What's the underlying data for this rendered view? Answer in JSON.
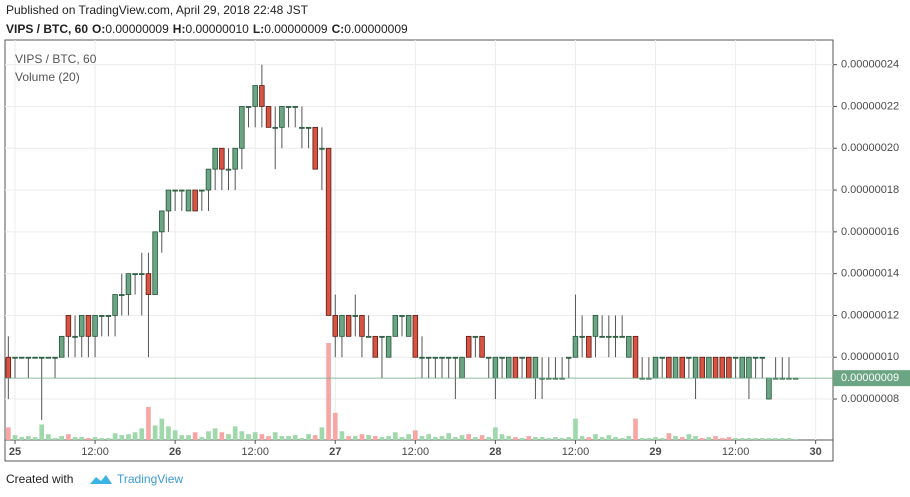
{
  "header": {
    "published": "Published on TradingView.com, April 29, 2018 22:48 JST",
    "symbol": "VIPS / BTC, 60",
    "ohlc": [
      {
        "label": "O:",
        "value": "0.00000009"
      },
      {
        "label": "H:",
        "value": "0.00000010"
      },
      {
        "label": "L:",
        "value": "0.00000009"
      },
      {
        "label": "C:",
        "value": "0.00000009"
      }
    ]
  },
  "chart_data": {
    "type": "candlestick",
    "legend": [
      "VIPS / BTC, 60",
      "Volume (20)"
    ],
    "up_color": "#6ba583",
    "down_color": "#d75442",
    "up_border": "#225437",
    "down_border": "#5b1a13",
    "volume_up_color": "#9fd8ab",
    "volume_down_color": "#f7a6a6",
    "grid": true,
    "ylim": [
      6.04e-08,
      2.518e-07
    ],
    "yticks": [
      {
        "value": 8e-08,
        "label": "0.00000008"
      },
      {
        "value": 1e-07,
        "label": "0.00000010"
      },
      {
        "value": 1.2e-07,
        "label": "0.00000012"
      },
      {
        "value": 1.4e-07,
        "label": "0.00000014"
      },
      {
        "value": 1.6e-07,
        "label": "0.00000016"
      },
      {
        "value": 1.8e-07,
        "label": "0.00000018"
      },
      {
        "value": 2e-07,
        "label": "0.00000020"
      },
      {
        "value": 2.2e-07,
        "label": "0.00000022"
      },
      {
        "value": 2.4e-07,
        "label": "0.00000024"
      }
    ],
    "xlim": [
      -0.5,
      123.6
    ],
    "xticks": [
      {
        "value": 1,
        "label": "25"
      },
      {
        "value": 13,
        "label": "12:00"
      },
      {
        "value": 25,
        "label": "26"
      },
      {
        "value": 37,
        "label": "12:00"
      },
      {
        "value": 49,
        "label": "27"
      },
      {
        "value": 61,
        "label": "12:00"
      },
      {
        "value": 73,
        "label": "28"
      },
      {
        "value": 85,
        "label": "12:00"
      },
      {
        "value": 97,
        "label": "29"
      },
      {
        "value": 109,
        "label": "12:00"
      },
      {
        "value": 121,
        "label": "30"
      }
    ],
    "last_price": {
      "value": 9e-08,
      "label": "0.00000009"
    },
    "candles": [
      {
        "open": 1e-07,
        "high": 1.1e-07,
        "low": 8e-08,
        "close": 9e-08,
        "volume": 13
      },
      {
        "open": 1e-07,
        "high": 1e-07,
        "low": 9e-08,
        "close": 1e-07,
        "volume": 5
      },
      {
        "open": 1e-07,
        "high": 1e-07,
        "low": 1e-07,
        "close": 1e-07,
        "volume": 3
      },
      {
        "open": 1e-07,
        "high": 1e-07,
        "low": 9e-08,
        "close": 1e-07,
        "volume": 4
      },
      {
        "open": 1e-07,
        "high": 1e-07,
        "low": 1e-07,
        "close": 1e-07,
        "volume": 3
      },
      {
        "open": 1e-07,
        "high": 1e-07,
        "low": 7e-08,
        "close": 1e-07,
        "volume": 16
      },
      {
        "open": 1e-07,
        "high": 1e-07,
        "low": 1e-07,
        "close": 1e-07,
        "volume": 6
      },
      {
        "open": 1e-07,
        "high": 1e-07,
        "low": 9e-08,
        "close": 1e-07,
        "volume": 2
      },
      {
        "open": 1e-07,
        "high": 1.1e-07,
        "low": 1e-07,
        "close": 1.1e-07,
        "volume": 4
      },
      {
        "open": 1.2e-07,
        "high": 1.2e-07,
        "low": 1e-07,
        "close": 1.1e-07,
        "volume": 6
      },
      {
        "open": 1.1e-07,
        "high": 1.2e-07,
        "low": 1e-07,
        "close": 1.1e-07,
        "volume": 3
      },
      {
        "open": 1.1e-07,
        "high": 1.2e-07,
        "low": 1e-07,
        "close": 1.2e-07,
        "volume": 3
      },
      {
        "open": 1.2e-07,
        "high": 1.2e-07,
        "low": 1e-07,
        "close": 1.1e-07,
        "volume": 2
      },
      {
        "open": 1.1e-07,
        "high": 1.2e-07,
        "low": 1e-07,
        "close": 1.2e-07,
        "volume": 3
      },
      {
        "open": 1.2e-07,
        "high": 1.2e-07,
        "low": 1.1e-07,
        "close": 1.2e-07,
        "volume": 2
      },
      {
        "open": 1.2e-07,
        "high": 1.2e-07,
        "low": 1.1e-07,
        "close": 1.2e-07,
        "volume": 2
      },
      {
        "open": 1.2e-07,
        "high": 1.3e-07,
        "low": 1.1e-07,
        "close": 1.3e-07,
        "volume": 7
      },
      {
        "open": 1.3e-07,
        "high": 1.4e-07,
        "low": 1.2e-07,
        "close": 1.3e-07,
        "volume": 5
      },
      {
        "open": 1.3e-07,
        "high": 1.4e-07,
        "low": 1.2e-07,
        "close": 1.4e-07,
        "volume": 6
      },
      {
        "open": 1.4e-07,
        "high": 1.4e-07,
        "low": 1.3e-07,
        "close": 1.4e-07,
        "volume": 8
      },
      {
        "open": 1.4e-07,
        "high": 1.5e-07,
        "low": 1.2e-07,
        "close": 1.4e-07,
        "volume": 12
      },
      {
        "open": 1.4e-07,
        "high": 1.5e-07,
        "low": 1e-07,
        "close": 1.3e-07,
        "volume": 34
      },
      {
        "open": 1.3e-07,
        "high": 1.6e-07,
        "low": 1.3e-07,
        "close": 1.6e-07,
        "volume": 15
      },
      {
        "open": 1.6e-07,
        "high": 1.7e-07,
        "low": 1.5e-07,
        "close": 1.7e-07,
        "volume": 22
      },
      {
        "open": 1.7e-07,
        "high": 1.8e-07,
        "low": 1.6e-07,
        "close": 1.8e-07,
        "volume": 14
      },
      {
        "open": 1.8e-07,
        "high": 1.8e-07,
        "low": 1.7e-07,
        "close": 1.8e-07,
        "volume": 10
      },
      {
        "open": 1.8e-07,
        "high": 1.8e-07,
        "low": 1.7e-07,
        "close": 1.8e-07,
        "volume": 5
      },
      {
        "open": 1.7e-07,
        "high": 1.8e-07,
        "low": 1.7e-07,
        "close": 1.8e-07,
        "volume": 5
      },
      {
        "open": 1.8e-07,
        "high": 1.8e-07,
        "low": 1.7e-07,
        "close": 1.7e-07,
        "volume": 8
      },
      {
        "open": 1.8e-07,
        "high": 1.8e-07,
        "low": 1.7e-07,
        "close": 1.8e-07,
        "volume": 3
      },
      {
        "open": 1.8e-07,
        "high": 1.9e-07,
        "low": 1.7e-07,
        "close": 1.9e-07,
        "volume": 9
      },
      {
        "open": 1.9e-07,
        "high": 2e-07,
        "low": 1.8e-07,
        "close": 2e-07,
        "volume": 12
      },
      {
        "open": 2e-07,
        "high": 2e-07,
        "low": 1.8e-07,
        "close": 1.9e-07,
        "volume": 8
      },
      {
        "open": 1.9e-07,
        "high": 2e-07,
        "low": 1.8e-07,
        "close": 1.9e-07,
        "volume": 6
      },
      {
        "open": 1.9e-07,
        "high": 2e-07,
        "low": 1.8e-07,
        "close": 2e-07,
        "volume": 14
      },
      {
        "open": 2e-07,
        "high": 2.2e-07,
        "low": 1.9e-07,
        "close": 2.2e-07,
        "volume": 9
      },
      {
        "open": 2.2e-07,
        "high": 2.2e-07,
        "low": 2.1e-07,
        "close": 2.2e-07,
        "volume": 6
      },
      {
        "open": 2.2e-07,
        "high": 2.3e-07,
        "low": 2.1e-07,
        "close": 2.3e-07,
        "volume": 8
      },
      {
        "open": 2.3e-07,
        "high": 2.4e-07,
        "low": 2.1e-07,
        "close": 2.2e-07,
        "volume": 6
      },
      {
        "open": 2.2e-07,
        "high": 2.2e-07,
        "low": 2.1e-07,
        "close": 2.1e-07,
        "volume": 4
      },
      {
        "open": 2.1e-07,
        "high": 2.2e-07,
        "low": 1.9e-07,
        "close": 2.1e-07,
        "volume": 8
      },
      {
        "open": 2.1e-07,
        "high": 2.2e-07,
        "low": 2e-07,
        "close": 2.2e-07,
        "volume": 4
      },
      {
        "open": 2.2e-07,
        "high": 2.2e-07,
        "low": 2.1e-07,
        "close": 2.2e-07,
        "volume": 4
      },
      {
        "open": 2.2e-07,
        "high": 2.2e-07,
        "low": 2.1e-07,
        "close": 2.2e-07,
        "volume": 5
      },
      {
        "open": 2.1e-07,
        "high": 2.2e-07,
        "low": 2e-07,
        "close": 2.1e-07,
        "volume": 2
      },
      {
        "open": 2.1e-07,
        "high": 2.1e-07,
        "low": 2e-07,
        "close": 2.1e-07,
        "volume": 6
      },
      {
        "open": 2.1e-07,
        "high": 2.1e-07,
        "low": 1.9e-07,
        "close": 1.9e-07,
        "volume": 5
      },
      {
        "open": 2e-07,
        "high": 2.1e-07,
        "low": 1.8e-07,
        "close": 2e-07,
        "volume": 13
      },
      {
        "open": 2e-07,
        "high": 2e-07,
        "low": 1.2e-07,
        "close": 1.2e-07,
        "volume": 100
      },
      {
        "open": 1.2e-07,
        "high": 1.3e-07,
        "low": 1e-07,
        "close": 1.1e-07,
        "volume": 28
      },
      {
        "open": 1.1e-07,
        "high": 1.2e-07,
        "low": 1e-07,
        "close": 1.2e-07,
        "volume": 9
      },
      {
        "open": 1.2e-07,
        "high": 1.2e-07,
        "low": 1.1e-07,
        "close": 1.1e-07,
        "volume": 4
      },
      {
        "open": 1.2e-07,
        "high": 1.3e-07,
        "low": 1.1e-07,
        "close": 1.2e-07,
        "volume": 4
      },
      {
        "open": 1.2e-07,
        "high": 1.2e-07,
        "low": 1e-07,
        "close": 1.1e-07,
        "volume": 6
      },
      {
        "open": 1.1e-07,
        "high": 1.2e-07,
        "low": 1.1e-07,
        "close": 1.1e-07,
        "volume": 5
      },
      {
        "open": 1.1e-07,
        "high": 1.1e-07,
        "low": 1e-07,
        "close": 1e-07,
        "volume": 4
      },
      {
        "open": 1.1e-07,
        "high": 1.1e-07,
        "low": 9e-08,
        "close": 1.1e-07,
        "volume": 3
      },
      {
        "open": 1e-07,
        "high": 1.1e-07,
        "low": 1e-07,
        "close": 1.1e-07,
        "volume": 4
      },
      {
        "open": 1.1e-07,
        "high": 1.2e-07,
        "low": 1.1e-07,
        "close": 1.2e-07,
        "volume": 8
      },
      {
        "open": 1.2e-07,
        "high": 1.2e-07,
        "low": 1.1e-07,
        "close": 1.2e-07,
        "volume": 3
      },
      {
        "open": 1.1e-07,
        "high": 1.2e-07,
        "low": 1.1e-07,
        "close": 1.2e-07,
        "volume": 6
      },
      {
        "open": 1.2e-07,
        "high": 1.2e-07,
        "low": 1e-07,
        "close": 1e-07,
        "volume": 10
      },
      {
        "open": 1e-07,
        "high": 1.1e-07,
        "low": 9e-08,
        "close": 1e-07,
        "volume": 4
      },
      {
        "open": 1e-07,
        "high": 1e-07,
        "low": 9e-08,
        "close": 1e-07,
        "volume": 6
      },
      {
        "open": 1e-07,
        "high": 1e-07,
        "low": 9e-08,
        "close": 1e-07,
        "volume": 3
      },
      {
        "open": 1e-07,
        "high": 1e-07,
        "low": 9e-08,
        "close": 1e-07,
        "volume": 4
      },
      {
        "open": 1e-07,
        "high": 1e-07,
        "low": 9e-08,
        "close": 1e-07,
        "volume": 7
      },
      {
        "open": 1e-07,
        "high": 1e-07,
        "low": 8e-08,
        "close": 1e-07,
        "volume": 3
      },
      {
        "open": 9e-08,
        "high": 1e-07,
        "low": 9e-08,
        "close": 1e-07,
        "volume": 5
      },
      {
        "open": 1.1e-07,
        "high": 1.1e-07,
        "low": 1e-07,
        "close": 1e-07,
        "volume": 6
      },
      {
        "open": 1.1e-07,
        "high": 1.1e-07,
        "low": 1e-07,
        "close": 1.1e-07,
        "volume": 3
      },
      {
        "open": 1.1e-07,
        "high": 1.1e-07,
        "low": 1e-07,
        "close": 1e-07,
        "volume": 5
      },
      {
        "open": 1e-07,
        "high": 1e-07,
        "low": 9e-08,
        "close": 1e-07,
        "volume": 3
      },
      {
        "open": 9e-08,
        "high": 1e-07,
        "low": 8e-08,
        "close": 1e-07,
        "volume": 13
      },
      {
        "open": 1e-07,
        "high": 1e-07,
        "low": 9e-08,
        "close": 1e-07,
        "volume": 6
      },
      {
        "open": 9e-08,
        "high": 1e-07,
        "low": 9e-08,
        "close": 1e-07,
        "volume": 4
      },
      {
        "open": 1e-07,
        "high": 1e-07,
        "low": 9e-08,
        "close": 9e-08,
        "volume": 3
      },
      {
        "open": 1e-07,
        "high": 1e-07,
        "low": 9e-08,
        "close": 1e-07,
        "volume": 2
      },
      {
        "open": 1e-07,
        "high": 1e-07,
        "low": 9e-08,
        "close": 9e-08,
        "volume": 4
      },
      {
        "open": 9e-08,
        "high": 1e-07,
        "low": 8e-08,
        "close": 1e-07,
        "volume": 3
      },
      {
        "open": 9e-08,
        "high": 1e-07,
        "low": 8e-08,
        "close": 9e-08,
        "volume": 3
      },
      {
        "open": 9e-08,
        "high": 1e-07,
        "low": 9e-08,
        "close": 9e-08,
        "volume": 2
      },
      {
        "open": 9e-08,
        "high": 1e-07,
        "low": 9e-08,
        "close": 9e-08,
        "volume": 3
      },
      {
        "open": 9e-08,
        "high": 1e-07,
        "low": 9e-08,
        "close": 9e-08,
        "volume": 2
      },
      {
        "open": 1e-07,
        "high": 1e-07,
        "low": 9e-08,
        "close": 1e-07,
        "volume": 3
      },
      {
        "open": 1e-07,
        "high": 1.3e-07,
        "low": 1e-07,
        "close": 1.1e-07,
        "volume": 22
      },
      {
        "open": 1.1e-07,
        "high": 1.2e-07,
        "low": 1e-07,
        "close": 1.1e-07,
        "volume": 4
      },
      {
        "open": 1.1e-07,
        "high": 1.1e-07,
        "low": 1e-07,
        "close": 1e-07,
        "volume": 3
      },
      {
        "open": 1.1e-07,
        "high": 1.2e-07,
        "low": 1e-07,
        "close": 1.2e-07,
        "volume": 6
      },
      {
        "open": 1.1e-07,
        "high": 1.2e-07,
        "low": 1.1e-07,
        "close": 1.1e-07,
        "volume": 3
      },
      {
        "open": 1.1e-07,
        "high": 1.2e-07,
        "low": 1e-07,
        "close": 1.1e-07,
        "volume": 5
      },
      {
        "open": 1.1e-07,
        "high": 1.2e-07,
        "low": 1e-07,
        "close": 1.1e-07,
        "volume": 3
      },
      {
        "open": 1.1e-07,
        "high": 1.2e-07,
        "low": 1.1e-07,
        "close": 1.1e-07,
        "volume": 2
      },
      {
        "open": 1e-07,
        "high": 1.1e-07,
        "low": 1e-07,
        "close": 1.1e-07,
        "volume": 4
      },
      {
        "open": 1.1e-07,
        "high": 1.1e-07,
        "low": 9e-08,
        "close": 9e-08,
        "volume": 22
      },
      {
        "open": 9e-08,
        "high": 1e-07,
        "low": 9e-08,
        "close": 9e-08,
        "volume": 2
      },
      {
        "open": 9e-08,
        "high": 1e-07,
        "low": 9e-08,
        "close": 9e-08,
        "volume": 2
      },
      {
        "open": 9e-08,
        "high": 1e-07,
        "low": 9e-08,
        "close": 1e-07,
        "volume": 3
      },
      {
        "open": 1e-07,
        "high": 1e-07,
        "low": 9e-08,
        "close": 1e-07,
        "volume": 2
      },
      {
        "open": 1e-07,
        "high": 1e-07,
        "low": 9e-08,
        "close": 9e-08,
        "volume": 7
      },
      {
        "open": 9e-08,
        "high": 1e-07,
        "low": 9e-08,
        "close": 1e-07,
        "volume": 4
      },
      {
        "open": 1e-07,
        "high": 1e-07,
        "low": 9e-08,
        "close": 9e-08,
        "volume": 3
      },
      {
        "open": 1e-07,
        "high": 1e-07,
        "low": 9e-08,
        "close": 1e-07,
        "volume": 6
      },
      {
        "open": 9e-08,
        "high": 1e-07,
        "low": 8e-08,
        "close": 1e-07,
        "volume": 4
      },
      {
        "open": 1e-07,
        "high": 1e-07,
        "low": 9e-08,
        "close": 9e-08,
        "volume": 2
      },
      {
        "open": 9e-08,
        "high": 1e-07,
        "low": 9e-08,
        "close": 1e-07,
        "volume": 3
      },
      {
        "open": 1e-07,
        "high": 1e-07,
        "low": 9e-08,
        "close": 9e-08,
        "volume": 4
      },
      {
        "open": 1e-07,
        "high": 1e-07,
        "low": 9e-08,
        "close": 9e-08,
        "volume": 2
      },
      {
        "open": 1e-07,
        "high": 1e-07,
        "low": 9e-08,
        "close": 9e-08,
        "volume": 3
      },
      {
        "open": 1e-07,
        "high": 1e-07,
        "low": 9e-08,
        "close": 1e-07,
        "volume": 2
      },
      {
        "open": 9e-08,
        "high": 1e-07,
        "low": 9e-08,
        "close": 1e-07,
        "volume": 2
      },
      {
        "open": 9e-08,
        "high": 1e-07,
        "low": 8e-08,
        "close": 1e-07,
        "volume": 2
      },
      {
        "open": 1e-07,
        "high": 1e-07,
        "low": 9e-08,
        "close": 1e-07,
        "volume": 2
      },
      {
        "open": 1e-07,
        "high": 1e-07,
        "low": 9e-08,
        "close": 1e-07,
        "volume": 2
      },
      {
        "open": 8e-08,
        "high": 9e-08,
        "low": 8e-08,
        "close": 9e-08,
        "volume": 2
      },
      {
        "open": 9e-08,
        "high": 1e-07,
        "low": 9e-08,
        "close": 9e-08,
        "volume": 2
      },
      {
        "open": 9e-08,
        "high": 1e-07,
        "low": 9e-08,
        "close": 9e-08,
        "volume": 2
      },
      {
        "open": 9e-08,
        "high": 1e-07,
        "low": 9e-08,
        "close": 9e-08,
        "volume": 2
      },
      {
        "open": 9e-08,
        "high": 9e-08,
        "low": 9e-08,
        "close": 9e-08,
        "volume": 1
      }
    ]
  },
  "footer": {
    "created": "Created with",
    "brand": "TradingView"
  }
}
